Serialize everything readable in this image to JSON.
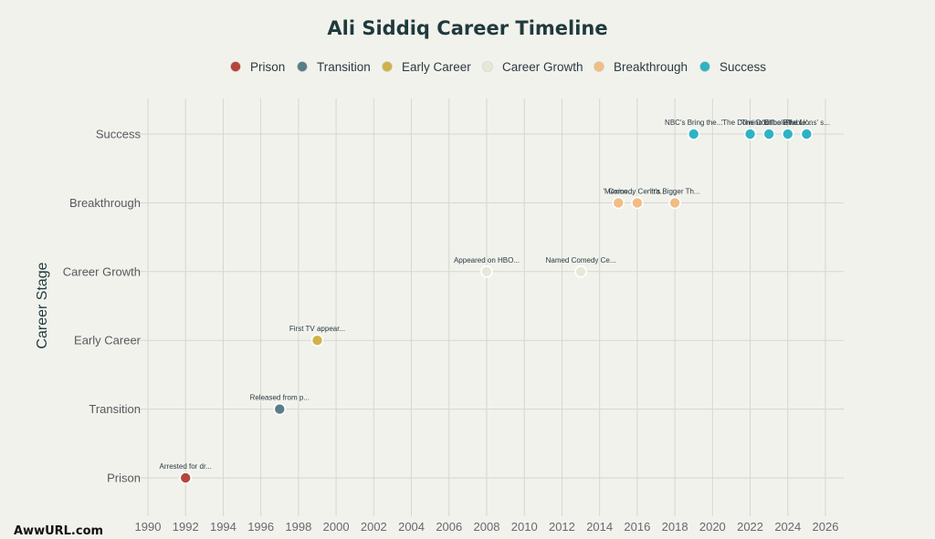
{
  "chart_data": {
    "type": "scatter",
    "title": "Ali Siddiq Career Timeline",
    "ylabel": "Career Stage",
    "xlabel": "",
    "xlim": [
      1989.5,
      2027
    ],
    "xticks": [
      1990,
      1992,
      1994,
      1996,
      1998,
      2000,
      2002,
      2004,
      2006,
      2008,
      2010,
      2012,
      2014,
      2016,
      2018,
      2020,
      2022,
      2024,
      2026
    ],
    "categories": [
      "Prison",
      "Transition",
      "Early Career",
      "Career Growth",
      "Breakthrough",
      "Success"
    ],
    "legend_position": "top",
    "grid": true,
    "series": [
      {
        "name": "Prison",
        "color": "#b5453b",
        "points": [
          {
            "x": 1992,
            "label": "Arrested for dr..."
          }
        ]
      },
      {
        "name": "Transition",
        "color": "#5a7d8a",
        "points": [
          {
            "x": 1997,
            "label": "Released from p..."
          }
        ]
      },
      {
        "name": "Early Career",
        "color": "#d1b24a",
        "points": [
          {
            "x": 1999,
            "label": "First TV appear..."
          }
        ]
      },
      {
        "name": "Career Growth",
        "color": "#e8e8d8",
        "points": [
          {
            "x": 2008,
            "label": "Appeared on HBO..."
          },
          {
            "x": 2013,
            "label": "Named Comedy Ce..."
          }
        ]
      },
      {
        "name": "Breakthrough",
        "color": "#f1bd82",
        "points": [
          {
            "x": 2015,
            "label": "'Mexico..."
          },
          {
            "x": 2016,
            "label": "Comedy Centra..."
          },
          {
            "x": 2018,
            "label": "'It's Bigger Th..."
          }
        ]
      },
      {
        "name": "Success",
        "color": "#2fb3c4",
        "points": [
          {
            "x": 2019,
            "label": "NBC's Bring the..."
          },
          {
            "x": 2022,
            "label": "'The Domino Eff..."
          },
          {
            "x": 2023,
            "label": "'The Domino Eff..."
          },
          {
            "x": 2024,
            "label": "'Unbelievable'..."
          },
          {
            "x": 2025,
            "label": "'The Lions' s..."
          }
        ]
      }
    ]
  },
  "footer": {
    "watermark": "AwwURL.com"
  }
}
